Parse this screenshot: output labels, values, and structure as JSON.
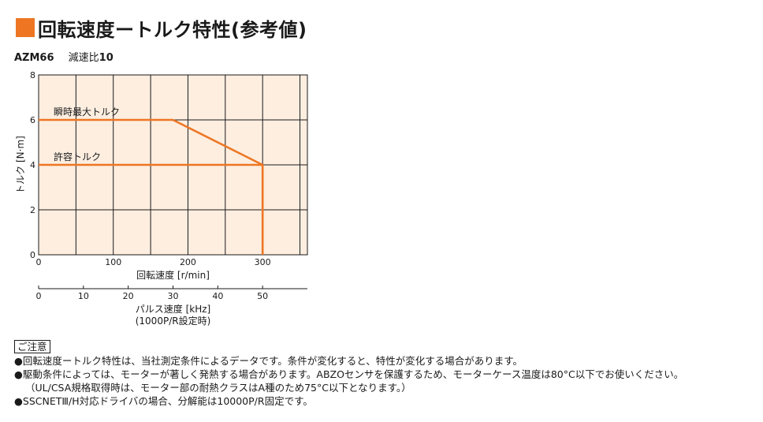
{
  "title": "回転速度ートルク特性(参考値)",
  "model": "AZM66",
  "ratio_label": "減速比",
  "ratio_value": "10",
  "colors": {
    "accent": "#ee7623",
    "plot_bg": "#fdeee0",
    "grid": "#1a1a1a"
  },
  "chart_data": {
    "type": "line",
    "xlabel": "回転速度 [r/min]",
    "ylabel": "トルク [N·m]",
    "xlim": [
      0,
      360
    ],
    "ylim": [
      0,
      8
    ],
    "xticks": [
      0,
      100,
      200,
      300
    ],
    "yticks": [
      0,
      2,
      4,
      6,
      8
    ],
    "secondary_axis": {
      "label": "パルス速度 [kHz]",
      "note": "(1000P/R設定時)",
      "ticks": [
        0,
        10,
        20,
        30,
        40,
        50
      ],
      "lim": [
        0,
        60
      ]
    },
    "series": [
      {
        "name": "瞬時最大トルク",
        "x": [
          0,
          180,
          300,
          300
        ],
        "y": [
          6,
          6,
          4,
          0
        ]
      },
      {
        "name": "許容トルク",
        "x": [
          0,
          300,
          300
        ],
        "y": [
          4,
          4,
          0
        ]
      }
    ]
  },
  "notes": {
    "heading": "ご注意",
    "lines": [
      "●回転速度ートルク特性は、当社測定条件によるデータです。条件が変化すると、特性が変化する場合があります。",
      "●駆動条件によっては、モーターが著しく発熱する場合があります。ABZOセンサを保護するため、モーターケース温度は80°C以下でお使いください。",
      "（UL/CSA規格取得時は、モーター部の耐熱クラスはA種のため75°C以下となります。）",
      "●SSCNETⅢ/H対応ドライバの場合、分解能は10000P/R固定です。"
    ]
  }
}
